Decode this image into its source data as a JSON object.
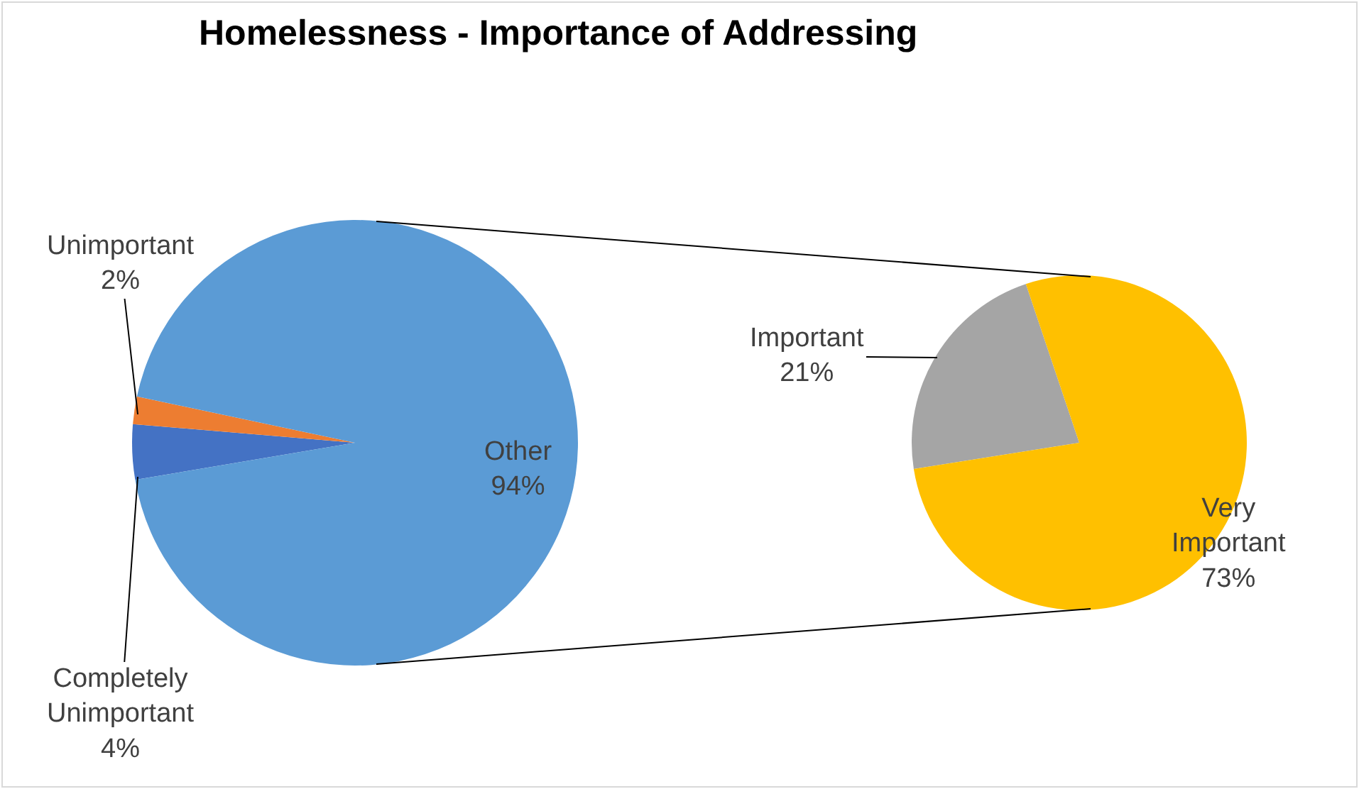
{
  "chart_data": [
    {
      "type": "pie",
      "title": "Homelessness - Importance of Addressing",
      "categories": [
        "Completely Unimportant",
        "Unimportant",
        "Other"
      ],
      "values": [
        4,
        2,
        94
      ],
      "value_labels": [
        "4%",
        "2%",
        "94%"
      ],
      "colors": [
        "#4472c4",
        "#ed7d31",
        "#5b9bd5"
      ],
      "legend": false
    },
    {
      "type": "pie",
      "categories": [
        "Important",
        "Very Important"
      ],
      "values": [
        21,
        73
      ],
      "value_labels": [
        "21%",
        "73%"
      ],
      "colors": [
        "#a5a5a5",
        "#ffc000"
      ],
      "legend": false
    }
  ]
}
